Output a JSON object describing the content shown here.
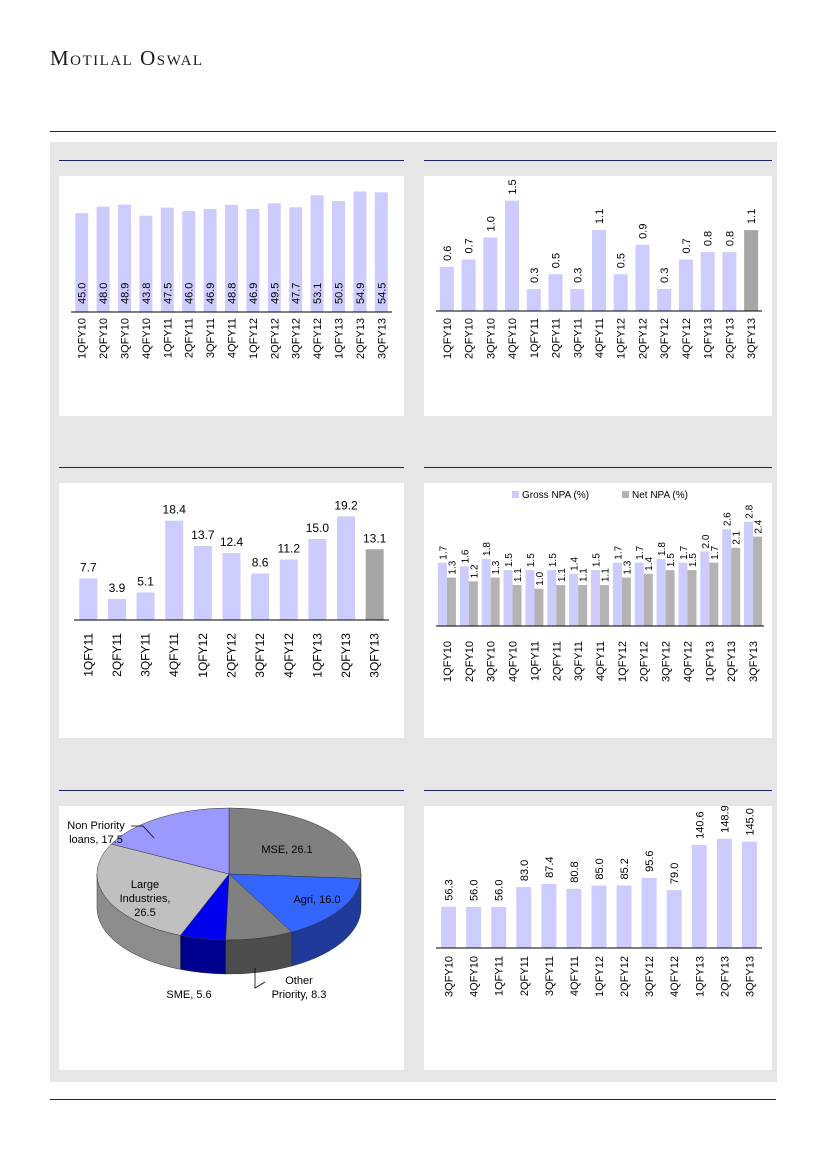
{
  "header": {
    "brand": "Motilal Oswal"
  },
  "chart_data": [
    {
      "type": "bar",
      "categories": [
        "1QFY10",
        "2QFY10",
        "3QFY10",
        "4QFY10",
        "1QFY11",
        "2QFY11",
        "3QFY11",
        "4QFY11",
        "1QFY12",
        "2QFY12",
        "3QFY12",
        "4QFY12",
        "1QFY13",
        "2QFY13",
        "3QFY13"
      ],
      "values": [
        45.0,
        48.0,
        48.9,
        43.8,
        47.5,
        46.0,
        46.9,
        48.8,
        46.9,
        49.5,
        47.7,
        53.1,
        50.5,
        54.9,
        54.5
      ],
      "labels": [
        "45.0",
        "48.0",
        "48.9",
        "43.8",
        "47.5",
        "46.0",
        "46.9",
        "48.8",
        "46.9",
        "49.5",
        "47.7",
        "53.1",
        "50.5",
        "54.9",
        "54.5"
      ],
      "ylim": [
        0,
        56
      ],
      "label_placement": "inside-vertical",
      "highlight_last": false,
      "bar_color": "#ccccff",
      "highlight_color": "#a6a6a6"
    },
    {
      "type": "bar",
      "categories": [
        "1QFY10",
        "2QFY10",
        "3QFY10",
        "4QFY10",
        "1QFY11",
        "2QFY11",
        "3QFY11",
        "4QFY11",
        "1QFY12",
        "2QFY12",
        "3QFY12",
        "4QFY12",
        "1QFY13",
        "2QFY13",
        "3QFY13"
      ],
      "values": [
        0.6,
        0.7,
        1.0,
        1.5,
        0.3,
        0.5,
        0.3,
        1.1,
        0.5,
        0.9,
        0.3,
        0.7,
        0.8,
        0.8,
        1.1
      ],
      "labels": [
        "0.6",
        "0.7",
        "1.0",
        "1.5",
        "0.3",
        "0.5",
        "0.3",
        "1.1",
        "0.5",
        "0.9",
        "0.3",
        "0.7",
        "0.8",
        "0.8",
        "1.1"
      ],
      "ylim": [
        0,
        1.55
      ],
      "label_placement": "above-vertical",
      "highlight_last": true,
      "bar_color": "#ccccff",
      "highlight_color": "#a6a6a6"
    },
    {
      "type": "bar",
      "categories": [
        "1QFY11",
        "2QFY11",
        "3QFY11",
        "4QFY11",
        "1QFY12",
        "2QFY12",
        "3QFY12",
        "4QFY12",
        "1QFY13",
        "2QFY13",
        "3QFY13"
      ],
      "values": [
        7.7,
        3.9,
        5.1,
        18.4,
        13.7,
        12.4,
        8.6,
        11.2,
        15.0,
        19.2,
        13.1
      ],
      "labels": [
        "7.7",
        "3.9",
        "5.1",
        "18.4",
        "13.7",
        "12.4",
        "8.6",
        "11.2",
        "15.0",
        "19.2",
        "13.1"
      ],
      "ylim": [
        0,
        20
      ],
      "label_placement": "above-horizontal",
      "highlight_last": true,
      "bar_color": "#ccccff",
      "highlight_color": "#a6a6a6"
    },
    {
      "type": "bar",
      "categories": [
        "1QFY10",
        "2QFY10",
        "3QFY10",
        "4QFY10",
        "1QFY11",
        "2QFY11",
        "3QFY11",
        "4QFY11",
        "1QFY12",
        "2QFY12",
        "3QFY12",
        "4QFY12",
        "1QFY13",
        "2QFY13",
        "3QFY13"
      ],
      "series": [
        {
          "name": "Gross NPA (%)",
          "color": "#ccccff",
          "values": [
            1.7,
            1.6,
            1.8,
            1.5,
            1.5,
            1.5,
            1.4,
            1.5,
            1.7,
            1.7,
            1.8,
            1.7,
            2.0,
            2.6,
            2.8
          ],
          "labels": [
            "1.7",
            "1.6",
            "1.8",
            "1.5",
            "1.5",
            "1.5",
            "1.4",
            "1.5",
            "1.7",
            "1.7",
            "1.8",
            "1.7",
            "2.0",
            "2.6",
            "2.8"
          ]
        },
        {
          "name": "Net NPA (%)",
          "color": "#b3b3b3",
          "values": [
            1.3,
            1.2,
            1.3,
            1.1,
            1.0,
            1.1,
            1.1,
            1.1,
            1.3,
            1.4,
            1.5,
            1.5,
            1.7,
            2.1,
            2.4
          ],
          "labels": [
            "1.3",
            "1.2",
            "1.3",
            "1.1",
            "1.0",
            "1.1",
            "1.1",
            "1.1",
            "1.3",
            "1.4",
            "1.5",
            "1.5",
            "1.7",
            "2.1",
            "2.4"
          ]
        }
      ],
      "ylim": [
        0,
        2.9
      ],
      "legend": "top"
    },
    {
      "type": "pie",
      "categories": [
        "MSE",
        "Agri",
        "Other Priority",
        "SME",
        "Large Industries",
        "Non Priority loans"
      ],
      "values": [
        26.1,
        16.0,
        8.3,
        5.6,
        26.5,
        17.5
      ],
      "labels": [
        "MSE, 26.1",
        "Agri, 16.0",
        "Other Priority, 8.3",
        "SME, 5.6",
        "Large Industries, 26.5",
        "Non Priority loans, 17.5"
      ],
      "colors": [
        "#808080",
        "#3366ff",
        "#808080",
        "#0000ee",
        "#c0c0c0",
        "#9999ff"
      ],
      "side_colors": [
        "#555555",
        "#1f3a99",
        "#4d4d4d",
        "#00008f",
        "#8c8c8c",
        "#6666b3"
      ],
      "style": "3d"
    },
    {
      "type": "bar",
      "categories": [
        "3QFY10",
        "4QFY10",
        "1QFY11",
        "2QFY11",
        "3QFY11",
        "4QFY11",
        "1QFY12",
        "2QFY12",
        "3QFY12",
        "4QFY12",
        "1QFY13",
        "2QFY13",
        "3QFY13"
      ],
      "values": [
        56.3,
        56.0,
        56.0,
        83.0,
        87.4,
        80.8,
        85.0,
        85.2,
        95.6,
        79.0,
        140.6,
        148.9,
        145.0
      ],
      "labels": [
        "56.3",
        "56.0",
        "56.0",
        "83.0",
        "87.4",
        "80.8",
        "85.0",
        "85.2",
        "95.6",
        "79.0",
        "140.6",
        "148.9",
        "145.0"
      ],
      "ylim": [
        0,
        150
      ],
      "label_placement": "above-vertical",
      "highlight_last": false,
      "bar_color": "#ccccff",
      "highlight_color": "#a6a6a6"
    }
  ]
}
